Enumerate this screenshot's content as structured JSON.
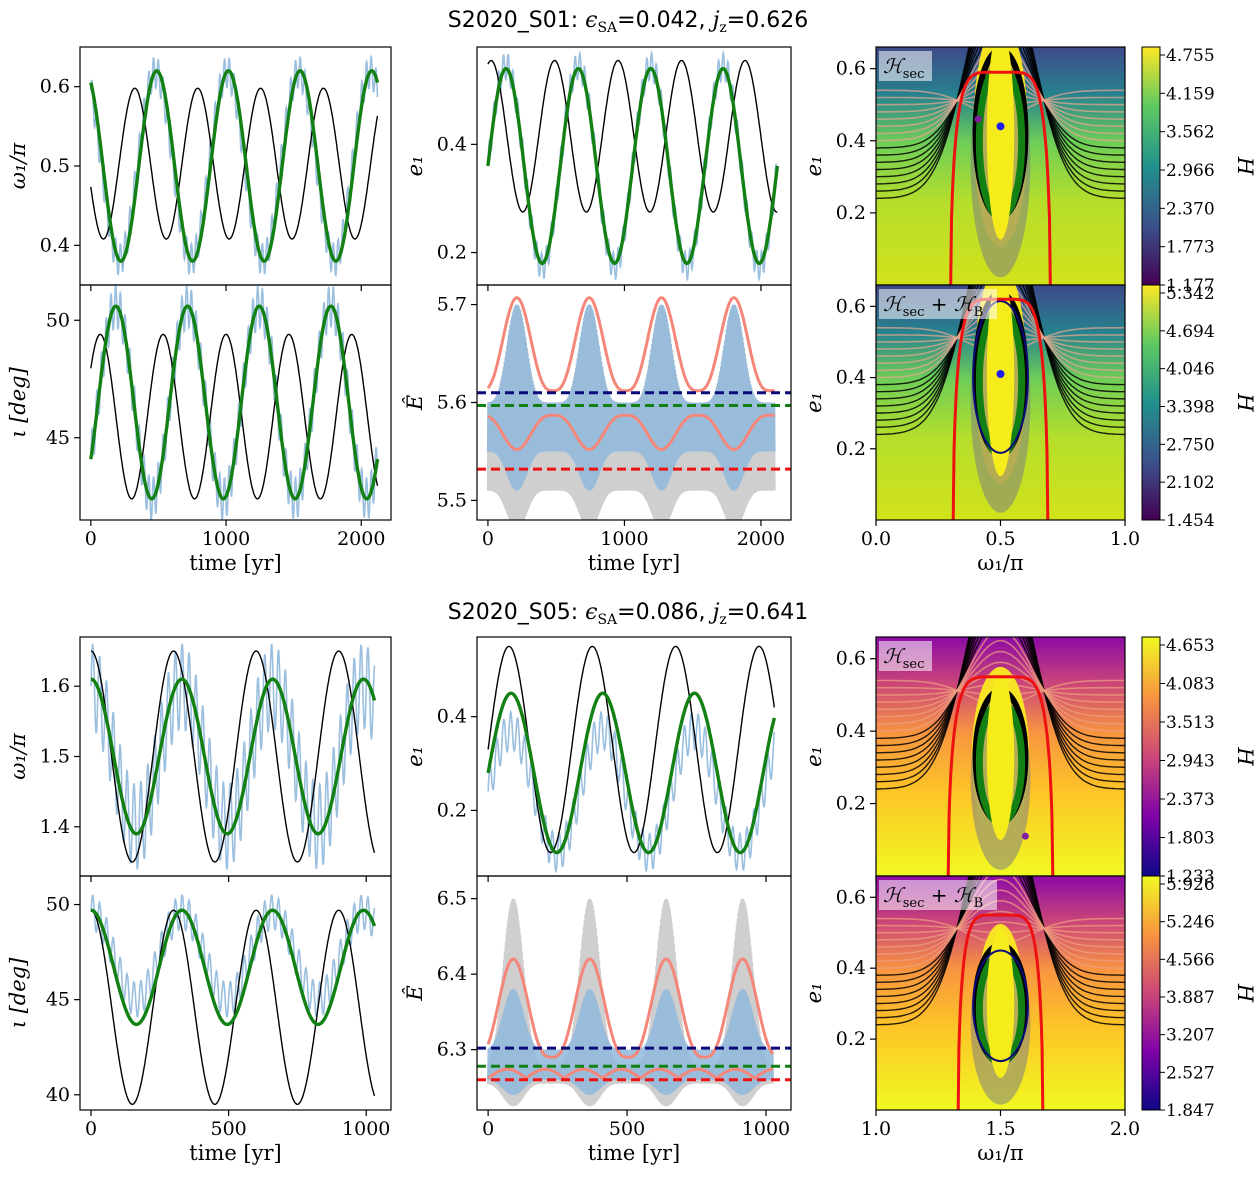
{
  "titles": [
    {
      "run": "S2020_S01",
      "eps_label": "ϵ",
      "eps_sub": "SA",
      "eps_value": "=0.042,",
      "jz_label": "j",
      "jz_sub": "z",
      "jz_value": "=0.626"
    },
    {
      "run": "S2020_S05",
      "eps_label": "ϵ",
      "eps_sub": "SA",
      "eps_value": "=0.086,",
      "jz_label": "j",
      "jz_sub": "z",
      "jz_value": "=0.641"
    }
  ],
  "colors": {
    "nbody": "#8fb8dc",
    "secular": "#000000",
    "brown": "#138013",
    "envelope": "#f4877a",
    "gray_band": "#a8a8a8",
    "navy": "#0a0a78",
    "green_dash": "#138013",
    "red": "#ee1111"
  },
  "chart_data": [
    {
      "id": "A_omega",
      "type": "line",
      "xlabel": "",
      "ylabel": "ω₁/π",
      "xlim": [
        -80,
        2220
      ],
      "ylim": [
        0.35,
        0.65
      ],
      "xticks": [
        0,
        1000,
        2000
      ],
      "xtick_labels": [
        "",
        "",
        ""
      ],
      "yticks": [
        0.4,
        0.5,
        0.6
      ],
      "ytick_labels": [
        "0.4",
        "0.5",
        "0.6"
      ],
      "series": [
        {
          "role": "nbody",
          "kind": "fill_osc",
          "center": 0.5,
          "amp": 0.118,
          "period": 530,
          "phase": 0.35,
          "band": 0.02,
          "lfreq": 35,
          "x_end": 2120
        },
        {
          "role": "secular",
          "kind": "sine",
          "center": 0.503,
          "amp": 0.095,
          "period": 465,
          "phase": 0.55,
          "x_end": 2120
        },
        {
          "role": "brown",
          "kind": "sine",
          "center": 0.5,
          "amp": 0.12,
          "period": 530,
          "phase": 0.33,
          "x_end": 2120
        }
      ]
    },
    {
      "id": "A_e",
      "type": "line",
      "xlabel": "",
      "ylabel": "e₁",
      "xlim": [
        -80,
        2220
      ],
      "ylim": [
        0.14,
        0.58
      ],
      "xticks": [
        0,
        1000,
        2000
      ],
      "xtick_labels": [
        "",
        "",
        ""
      ],
      "yticks": [
        0.2,
        0.4
      ],
      "ytick_labels": [
        "0.2",
        "0.4"
      ],
      "series": [
        {
          "role": "nbody",
          "kind": "fill_osc",
          "center": 0.36,
          "amp": 0.185,
          "period": 530,
          "phase": 0.0,
          "band": 0.025,
          "lfreq": 35,
          "x_end": 2120
        },
        {
          "role": "secular",
          "kind": "sine",
          "center": 0.415,
          "amp": 0.14,
          "period": 465,
          "phase": 0.2,
          "x_end": 2120
        },
        {
          "role": "brown",
          "kind": "sine",
          "center": 0.36,
          "amp": 0.18,
          "period": 530,
          "phase": 0.0,
          "x_end": 2120
        }
      ]
    },
    {
      "id": "A_i",
      "type": "line",
      "xlabel": "time [yr]",
      "ylabel": "ι [deg]",
      "xlim": [
        -80,
        2220
      ],
      "ylim": [
        41.5,
        51.5
      ],
      "xticks": [
        0,
        1000,
        2000
      ],
      "xtick_labels": [
        "0",
        "1000",
        "2000"
      ],
      "yticks": [
        45,
        50
      ],
      "ytick_labels": [
        "45",
        "50"
      ],
      "series": [
        {
          "role": "nbody",
          "kind": "fill_osc",
          "center": 46.5,
          "amp": 4.1,
          "period": 530,
          "phase": -0.1,
          "band": 0.9,
          "lfreq": 35,
          "x_end": 2120
        },
        {
          "role": "secular",
          "kind": "sine",
          "center": 45.9,
          "amp": 3.5,
          "period": 465,
          "phase": 0.1,
          "x_end": 2120
        },
        {
          "role": "brown",
          "kind": "sine",
          "center": 46.5,
          "amp": 4.1,
          "period": 530,
          "phase": -0.1,
          "x_end": 2120
        }
      ]
    },
    {
      "id": "A_E",
      "type": "line",
      "xlabel": "time [yr]",
      "ylabel": "Ê",
      "xlim": [
        -80,
        2220
      ],
      "ylim": [
        5.48,
        5.72
      ],
      "xticks": [
        0,
        1000,
        2000
      ],
      "xtick_labels": [
        "0",
        "1000",
        "2000"
      ],
      "yticks": [
        5.5,
        5.6,
        5.7
      ],
      "ytick_labels": [
        "5.5",
        "5.6",
        "5.7"
      ],
      "series": [
        {
          "role": "gray",
          "kind": "band_osc",
          "lo_base": 5.51,
          "lo_amp": 0.04,
          "hi_base": 5.6,
          "hi_amp": 0.1,
          "period": 530,
          "phase": 0.1,
          "x_end": 2100
        },
        {
          "role": "nbody",
          "kind": "band_osc",
          "lo_base": 5.55,
          "lo_amp": 0.04,
          "hi_base": 5.6,
          "hi_amp": 0.1,
          "period": 530,
          "phase": 0.1,
          "x_end": 2100
        },
        {
          "role": "envelope",
          "kind": "peaks",
          "base": 5.612,
          "amp": 0.095,
          "period": 530,
          "phase": 0.1,
          "x_end": 2100
        },
        {
          "role": "envelope",
          "kind": "dips",
          "base": 5.587,
          "amp": -0.035,
          "period": 530,
          "phase": 0.1,
          "x_end": 2100
        }
      ],
      "hlines": [
        {
          "role": "navy",
          "y": 5.61
        },
        {
          "role": "green_dash",
          "y": 5.597
        },
        {
          "role": "red",
          "y": 5.532
        }
      ]
    },
    {
      "id": "B_omega",
      "type": "line",
      "xlabel": "",
      "ylabel": "ω₁/π",
      "xlim": [
        -40,
        1090
      ],
      "ylim": [
        1.33,
        1.67
      ],
      "xticks": [
        0,
        500,
        1000
      ],
      "xtick_labels": [
        "",
        "",
        ""
      ],
      "yticks": [
        1.4,
        1.5,
        1.6
      ],
      "ytick_labels": [
        "1.4",
        "1.5",
        "1.6"
      ],
      "series": [
        {
          "role": "nbody",
          "kind": "fill_osc",
          "center": 1.5,
          "amp": 0.1,
          "period": 330,
          "phase": 0.25,
          "band": 0.06,
          "lfreq": 25,
          "x_end": 1030
        },
        {
          "role": "secular",
          "kind": "sine",
          "center": 1.5,
          "amp": 0.15,
          "period": 300,
          "phase": 0.25,
          "x_end": 1030
        },
        {
          "role": "brown",
          "kind": "sine",
          "center": 1.5,
          "amp": 0.11,
          "period": 330,
          "phase": 0.25,
          "x_end": 1030
        }
      ]
    },
    {
      "id": "B_e",
      "type": "line",
      "xlabel": "",
      "ylabel": "e₁",
      "xlim": [
        -40,
        1090
      ],
      "ylim": [
        0.06,
        0.57
      ],
      "xticks": [
        0,
        500,
        1000
      ],
      "xtick_labels": [
        "",
        "",
        ""
      ],
      "yticks": [
        0.2,
        0.4
      ],
      "ytick_labels": [
        "0.2",
        "0.4"
      ],
      "series": [
        {
          "role": "nbody",
          "kind": "fill_osc",
          "center": 0.24,
          "amp": 0.13,
          "period": 330,
          "phase": 0.0,
          "band": 0.04,
          "lfreq": 25,
          "x_end": 1030
        },
        {
          "role": "secular",
          "kind": "sine",
          "center": 0.33,
          "amp": 0.22,
          "period": 300,
          "phase": 0.0,
          "x_end": 1030
        },
        {
          "role": "brown",
          "kind": "sine",
          "center": 0.28,
          "amp": 0.17,
          "period": 330,
          "phase": 0.0,
          "x_end": 1030
        }
      ]
    },
    {
      "id": "B_i",
      "type": "line",
      "xlabel": "time [yr]",
      "ylabel": "ι [deg]",
      "xlim": [
        -40,
        1090
      ],
      "ylim": [
        39.2,
        51.5
      ],
      "xticks": [
        0,
        500,
        1000
      ],
      "xtick_labels": [
        "0",
        "500",
        "1000"
      ],
      "yticks": [
        40,
        45,
        50
      ],
      "ytick_labels": [
        "40",
        "45",
        "50"
      ],
      "series": [
        {
          "role": "nbody",
          "kind": "fill_osc",
          "center": 47.3,
          "amp": 2.3,
          "period": 330,
          "phase": 0.25,
          "band": 0.9,
          "lfreq": 25,
          "x_end": 1030
        },
        {
          "role": "secular",
          "kind": "sine",
          "center": 44.6,
          "amp": 5.1,
          "period": 300,
          "phase": 0.25,
          "x_end": 1030
        },
        {
          "role": "brown",
          "kind": "sine",
          "center": 46.7,
          "amp": 3.0,
          "period": 330,
          "phase": 0.25,
          "x_end": 1030
        }
      ]
    },
    {
      "id": "B_E",
      "type": "line",
      "xlabel": "time [yr]",
      "ylabel": "Ê",
      "xlim": [
        -40,
        1090
      ],
      "ylim": [
        6.22,
        6.53
      ],
      "xticks": [
        0,
        500,
        1000
      ],
      "xtick_labels": [
        "0",
        "500",
        "1000"
      ],
      "yticks": [
        6.3,
        6.4,
        6.5
      ],
      "ytick_labels": [
        "6.3",
        "6.4",
        "6.5"
      ],
      "series": [
        {
          "role": "gray",
          "kind": "band_osc",
          "lo_base": 6.255,
          "lo_amp": 0.03,
          "hi_base": 6.28,
          "hi_amp": 0.22,
          "period": 275,
          "phase": 0.17,
          "x_end": 1025
        },
        {
          "role": "nbody",
          "kind": "band_osc",
          "lo_base": 6.26,
          "lo_amp": 0.02,
          "hi_base": 6.3,
          "hi_amp": 0.08,
          "period": 275,
          "phase": 0.17,
          "x_end": 1025
        },
        {
          "role": "envelope",
          "kind": "peaks",
          "base": 6.29,
          "amp": 0.13,
          "period": 275,
          "phase": 0.17,
          "x_end": 1025
        },
        {
          "role": "envelope",
          "kind": "bumps",
          "base": 6.262,
          "amp": 0.012,
          "period": 137,
          "phase": 0.0,
          "x_end": 1025
        }
      ],
      "hlines": [
        {
          "role": "navy",
          "y": 6.302
        },
        {
          "role": "green_dash",
          "y": 6.278
        },
        {
          "role": "red",
          "y": 6.26
        }
      ]
    },
    {
      "id": "A_map1",
      "type": "heatmap",
      "label": "sec",
      "xlabel": "",
      "ylabel": "e₁",
      "xlim": [
        0.0,
        1.0
      ],
      "ylim": [
        0.0,
        0.66
      ],
      "xticks": [
        0.0,
        0.5,
        1.0
      ],
      "xtick_labels": [
        "",
        "",
        ""
      ],
      "yticks": [
        0.2,
        0.4,
        0.6
      ],
      "ytick_labels": [
        "0.2",
        "0.4",
        "0.6"
      ],
      "cmap": "viridis",
      "cx": 0.5,
      "cy": 0.42,
      "sep_w": 0.2,
      "sep_h": 0.59,
      "dot": [
        0.5,
        0.44
      ],
      "dot2": [
        0.41,
        0.46
      ],
      "dot_color": "#2020ee",
      "dot2_color": "#8020a0",
      "colorbar": {
        "ticks": [
          "4.755",
          "4.159",
          "3.562",
          "2.966",
          "2.370",
          "1.773",
          "1.177"
        ],
        "label": "H"
      }
    },
    {
      "id": "A_map2",
      "type": "heatmap",
      "label": "sec+B",
      "xlabel": "ω₁/π",
      "ylabel": "e₁",
      "xlim": [
        0.0,
        1.0
      ],
      "ylim": [
        0.0,
        0.66
      ],
      "xticks": [
        0.0,
        0.5,
        1.0
      ],
      "xtick_labels": [
        "0.0",
        "0.5",
        "1.0"
      ],
      "yticks": [
        0.2,
        0.4,
        0.6
      ],
      "ytick_labels": [
        "0.2",
        "0.4",
        "0.6"
      ],
      "cmap": "viridis",
      "cx": 0.5,
      "cy": 0.41,
      "sep_w": 0.19,
      "sep_h": 0.62,
      "dot": [
        0.5,
        0.41
      ],
      "dot2": null,
      "dot_color": "#2020ee",
      "colorbar": {
        "ticks": [
          "5.342",
          "4.694",
          "4.046",
          "3.398",
          "2.750",
          "2.102",
          "1.454"
        ],
        "label": "H"
      }
    },
    {
      "id": "B_map1",
      "type": "heatmap",
      "label": "sec",
      "xlabel": "",
      "ylabel": "e₁",
      "xlim": [
        1.0,
        2.0
      ],
      "ylim": [
        0.0,
        0.66
      ],
      "xticks": [
        1.0,
        1.5,
        2.0
      ],
      "xtick_labels": [
        "",
        "",
        ""
      ],
      "yticks": [
        0.2,
        0.4,
        0.6
      ],
      "ytick_labels": [
        "0.2",
        "0.4",
        "0.6"
      ],
      "cmap": "plasma",
      "cx": 1.5,
      "cy": 0.33,
      "sep_w": 0.21,
      "sep_h": 0.55,
      "dot": null,
      "dot2": [
        1.6,
        0.11
      ],
      "dot2_color": "#8020a0",
      "colorbar": {
        "ticks": [
          "4.653",
          "4.083",
          "3.513",
          "2.943",
          "2.373",
          "1.803",
          "1.233"
        ],
        "label": "H"
      }
    },
    {
      "id": "B_map2",
      "type": "heatmap",
      "label": "sec+B",
      "xlabel": "ω₁/π",
      "ylabel": "e₁",
      "xlim": [
        1.0,
        2.0
      ],
      "ylim": [
        0.0,
        0.66
      ],
      "xticks": [
        1.0,
        1.5,
        2.0
      ],
      "xtick_labels": [
        "1.0",
        "1.5",
        "2.0"
      ],
      "yticks": [
        0.2,
        0.4,
        0.6
      ],
      "ytick_labels": [
        "0.2",
        "0.4",
        "0.6"
      ],
      "cmap": "plasma",
      "cx": 1.5,
      "cy": 0.3,
      "sep_w": 0.17,
      "sep_h": 0.55,
      "dot": null,
      "dot2": null,
      "colorbar": {
        "ticks": [
          "5.926",
          "5.246",
          "4.566",
          "3.887",
          "3.207",
          "2.527",
          "1.847"
        ],
        "label": "H"
      }
    }
  ]
}
